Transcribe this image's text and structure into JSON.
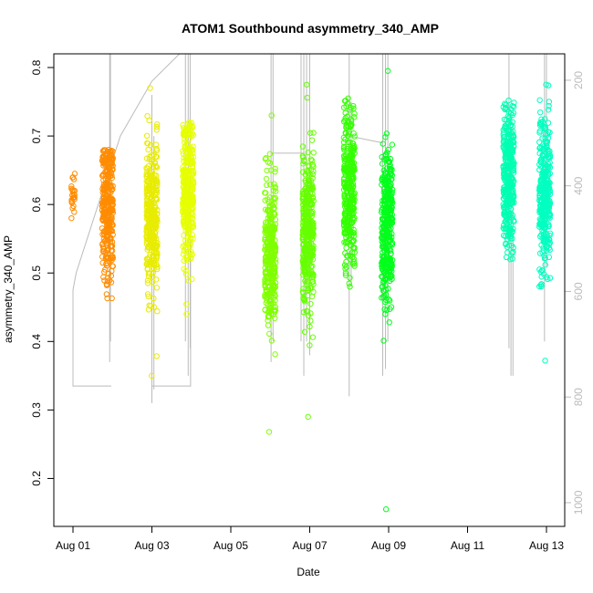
{
  "chart_data": {
    "type": "scatter",
    "title": "ATOM1 Southbound asymmetry_340_AMP",
    "xlabel": "Date",
    "ylabel": "asymmetry_340_AMP",
    "x_ticks": [
      "Aug 01",
      "Aug 03",
      "Aug 05",
      "Aug 07",
      "Aug 09",
      "Aug 11",
      "Aug 13"
    ],
    "y_ticks": [
      "0.2",
      "0.3",
      "0.4",
      "0.5",
      "0.6",
      "0.7",
      "0.8"
    ],
    "y2_ticks": [
      "200",
      "400",
      "600",
      "800",
      "1000"
    ],
    "ylim": [
      0.13,
      0.82
    ],
    "y2lim": [
      1045,
      150
    ],
    "xlim_days": [
      0.55,
      13.5
    ],
    "marker": "open-circle",
    "overlay_line_color": "#bbbbbb",
    "clusters": [
      {
        "x_center": "Aug 01",
        "color": "#ff8c00",
        "y_min": 0.58,
        "y_max": 0.645,
        "y_median": 0.615
      },
      {
        "x_center": "Aug 01 21:00",
        "color": "#ff8c00",
        "y_min": 0.463,
        "y_max": 0.68,
        "y_median": 0.6
      },
      {
        "x_center": "Aug 03",
        "color": "#e8ec00",
        "y_min": 0.35,
        "y_max": 0.77,
        "y_median": 0.58
      },
      {
        "x_center": "Aug 03 22:00",
        "color": "#e6ff00",
        "y_min": 0.44,
        "y_max": 0.72,
        "y_median": 0.62
      },
      {
        "x_center": "Aug 06",
        "color": "#80ff00",
        "y_min": 0.268,
        "y_max": 0.73,
        "y_median": 0.53
      },
      {
        "x_center": "Aug 06 23:00",
        "color": "#66ff00",
        "y_min": 0.29,
        "y_max": 0.775,
        "y_median": 0.56
      },
      {
        "x_center": "Aug 08",
        "color": "#33ff00",
        "y_min": 0.48,
        "y_max": 0.755,
        "y_median": 0.62
      },
      {
        "x_center": "Aug 08 23:00",
        "color": "#00ff1a",
        "y_min": 0.155,
        "y_max": 0.795,
        "y_median": 0.57
      },
      {
        "x_center": "Aug 12 01:00",
        "color": "#00ffb2",
        "y_min": 0.52,
        "y_max": 0.752,
        "y_median": 0.64
      },
      {
        "x_center": "Aug 12 23:00",
        "color": "#00ffc0",
        "y_min": 0.372,
        "y_max": 0.775,
        "y_median": 0.61
      }
    ]
  }
}
